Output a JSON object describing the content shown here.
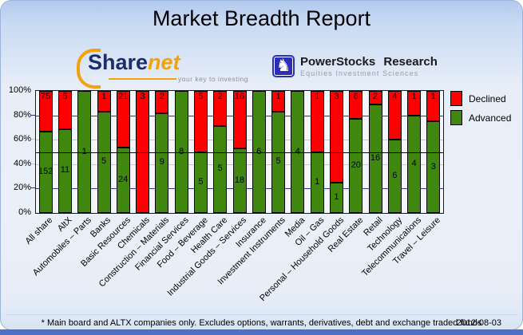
{
  "title": "Market Breadth Report",
  "logos": {
    "sharenet": {
      "part1": "Share",
      "part2": "net",
      "tagline": "your key to investing",
      "navy": "#1c2e6b",
      "orange": "#f3a20c"
    },
    "powerstocks": {
      "icon": "knight-chess-icon",
      "knight_glyph": "♞",
      "name": "PowerStocks Research",
      "subtitle": "Equities Investment Sciences",
      "square_color": "#2b2fb4"
    }
  },
  "legend": [
    {
      "label": "Declined",
      "color": "#fe0000"
    },
    {
      "label": "Advanced",
      "color": "#3f870e"
    }
  ],
  "chart_data": {
    "type": "bar",
    "stacked": true,
    "percent_scale": true,
    "title": "",
    "xlabel": "",
    "ylabel": "",
    "ylim": [
      0,
      100
    ],
    "y_ticks": [
      "100%",
      "80%",
      "60%",
      "40%",
      "20%",
      "0%"
    ],
    "reference_line_pct": 50,
    "legend_position": "top-right",
    "categories": [
      "All share",
      "AltX",
      "Automobiles – Parts",
      "Banks",
      "Basic Resources",
      "Chemicals",
      "Construction – Materials",
      "Financial Services",
      "Food – Beverage",
      "Health Care",
      "Industrial Goods – Services",
      "Insurance",
      "Investment Instruments",
      "Media",
      "Oil – Gas",
      "Personal – Household Goods",
      "Real Estate",
      "Retail",
      "Technology",
      "Telecommunications",
      "Travel – Leisure"
    ],
    "series": [
      {
        "name": "Declined",
        "color": "#fe0000",
        "values": [
          75,
          5,
          0,
          1,
          21,
          3,
          2,
          0,
          5,
          2,
          16,
          0,
          1,
          0,
          1,
          3,
          6,
          2,
          4,
          1,
          1
        ]
      },
      {
        "name": "Advanced",
        "color": "#3f870e",
        "values": [
          152,
          11,
          1,
          5,
          24,
          0,
          9,
          8,
          5,
          5,
          18,
          6,
          5,
          4,
          1,
          1,
          20,
          16,
          6,
          4,
          3
        ]
      }
    ],
    "colors": {
      "grid_accent": "#2f2f9e",
      "grid_minor": "#c6c6c6",
      "reference_line": "#000000",
      "plot_background": "#f3f6fa"
    }
  },
  "footer": {
    "note": "* Main board and ALTX companies only. Excludes options, warrants, derivatives, debt and exchange traded funds",
    "date": "2012-08-03"
  }
}
